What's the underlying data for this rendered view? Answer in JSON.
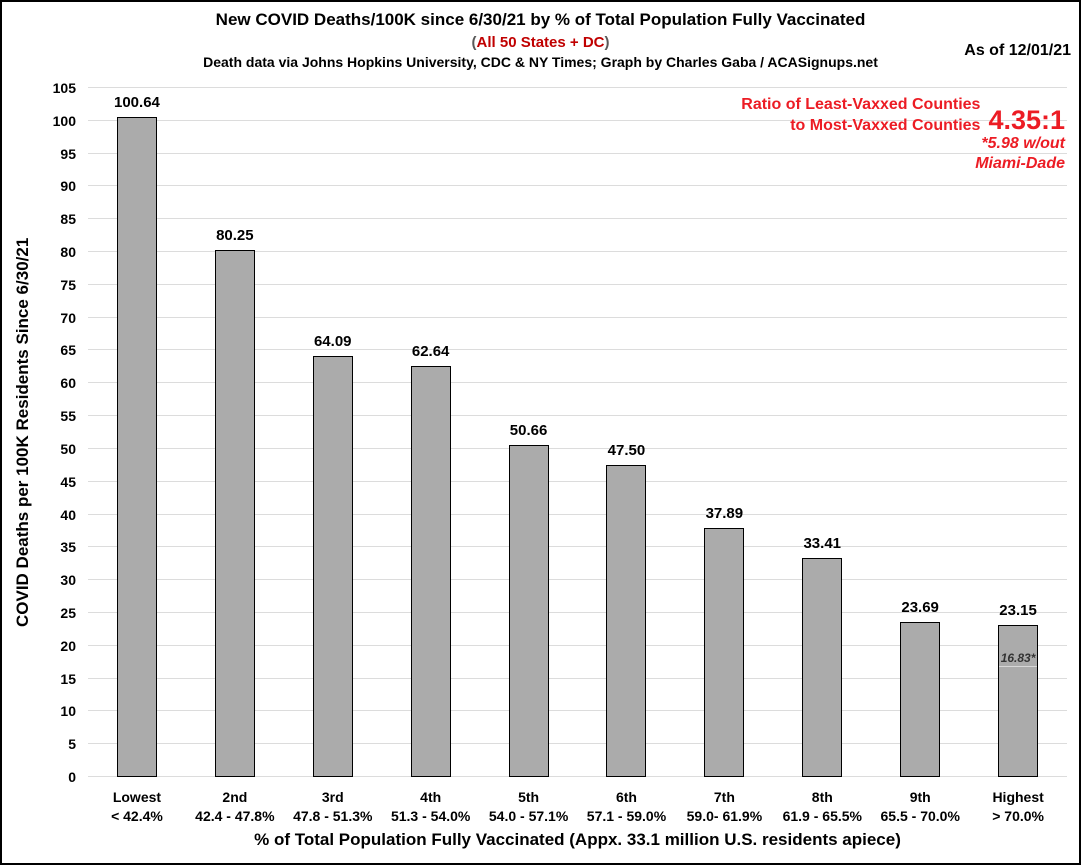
{
  "header": {
    "title": "New COVID Deaths/100K since 6/30/21 by % of Total Population Fully Vaccinated",
    "subtitle_open": "(",
    "subtitle_red": "All 50 States + DC",
    "subtitle_close": ")",
    "subtitle_red_color": "#c00000",
    "source_line": "Death data via Johns Hopkins University, CDC & NY Times; Graph by Charles Gaba / ACASignups.net",
    "as_of": "As of 12/01/21"
  },
  "annotation": {
    "label_line1": "Ratio of Least-Vaxxed Counties",
    "label_line2": "to Most-Vaxxed Counties",
    "ratio_value": "4.35:1",
    "footnote_line1": "*5.98 w/out",
    "footnote_line2": "Miami-Dade",
    "color": "#ec1c24"
  },
  "chart_data": {
    "type": "bar",
    "title": "New COVID Deaths/100K since 6/30/21 by % of Total Population Fully Vaccinated",
    "xlabel": "% of Total Population Fully Vaccinated (Appx. 33.1 million U.S. residents apiece)",
    "ylabel": "COVID Deaths per 100K Residents Since 6/30/21",
    "ylim": [
      0,
      105
    ],
    "ytick_step": 5,
    "grid": true,
    "legend": false,
    "bar_color": "#ababab",
    "bar_border_color": "#000000",
    "categories": [
      "Lowest",
      "2nd",
      "3rd",
      "4th",
      "5th",
      "6th",
      "7th",
      "8th",
      "9th",
      "Highest"
    ],
    "category_ranges": [
      "< 42.4%",
      "42.4 - 47.8%",
      "47.8 - 51.3%",
      "51.3 - 54.0%",
      "54.0 - 57.1%",
      "57.1 - 59.0%",
      "59.0- 61.9%",
      "61.9 - 65.5%",
      "65.5 - 70.0%",
      "> 70.0%"
    ],
    "values": [
      100.64,
      80.25,
      64.09,
      62.64,
      50.66,
      47.5,
      37.89,
      33.41,
      23.69,
      23.15
    ],
    "value_labels": [
      "100.64",
      "80.25",
      "64.09",
      "62.64",
      "50.66",
      "47.50",
      "37.89",
      "33.41",
      "23.69",
      "23.15"
    ],
    "inner_annotation": {
      "bar_index": 9,
      "label": "16.83*",
      "value": 16.83
    }
  }
}
